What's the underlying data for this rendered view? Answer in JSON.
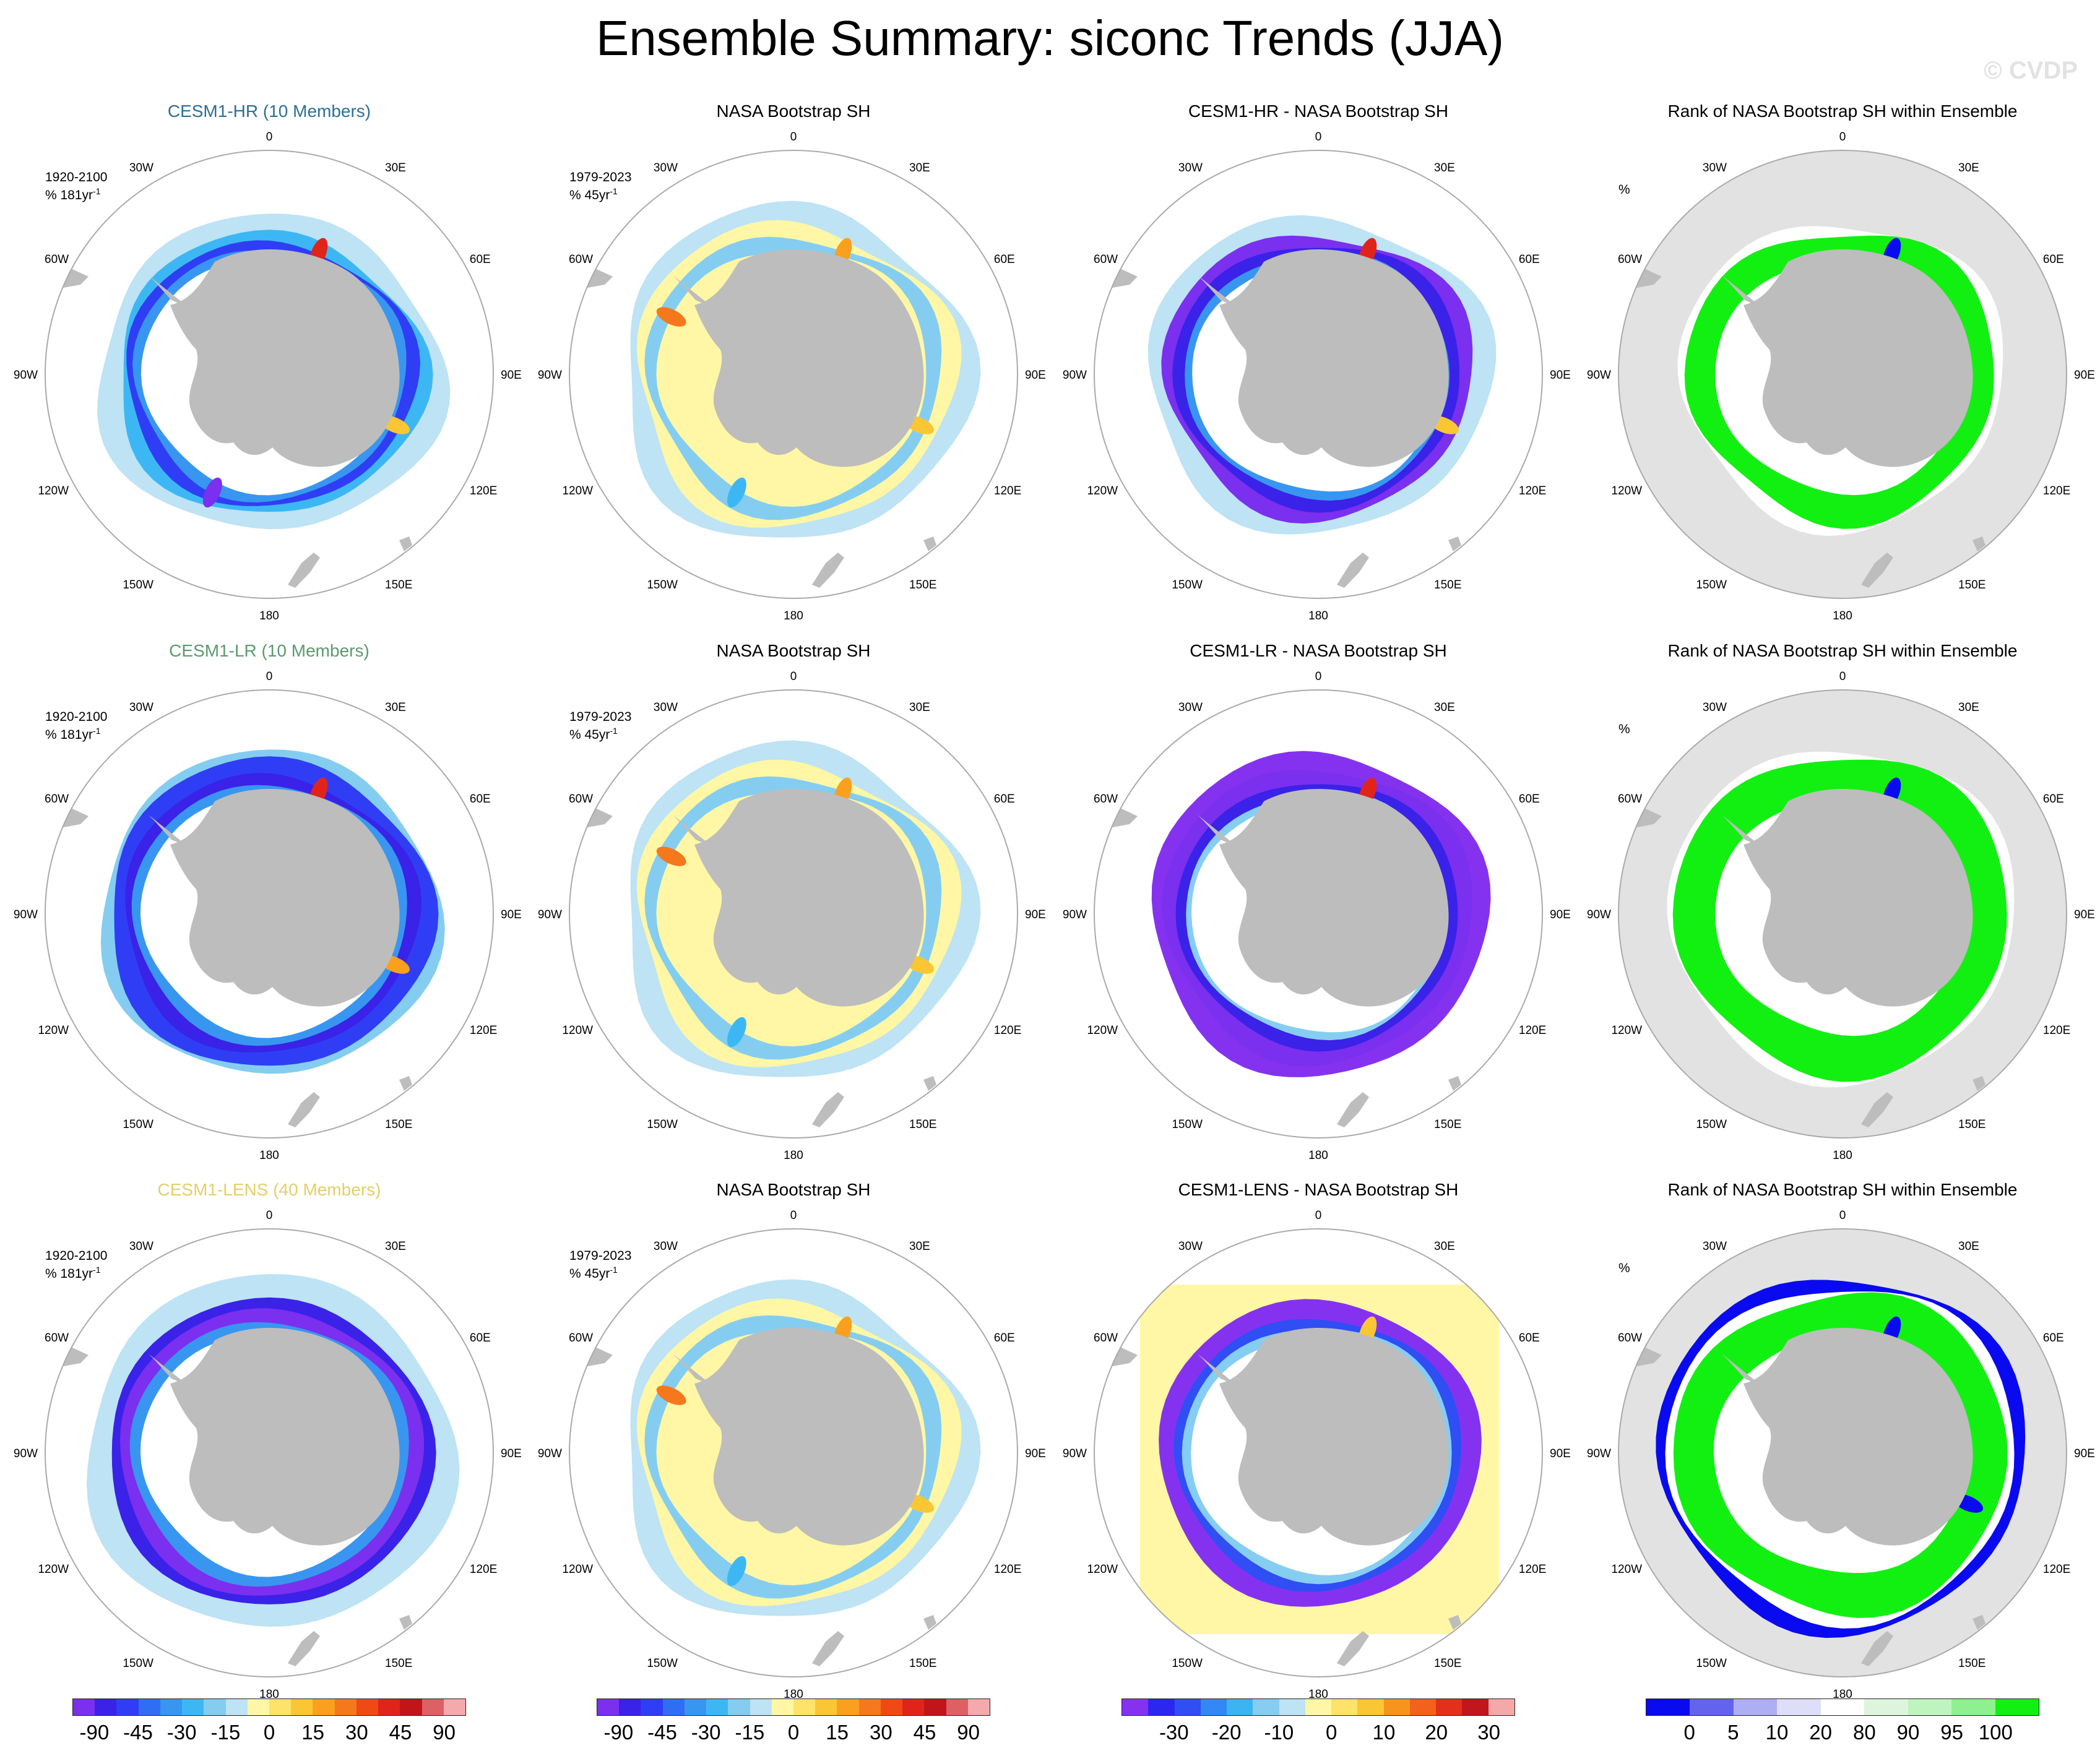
{
  "title": "Ensemble Summary: siconc Trends (JJA)",
  "watermark": "© CVDP",
  "lon_labels": [
    "0",
    "30E",
    "60E",
    "90E",
    "120E",
    "150E",
    "180",
    "150W",
    "120W",
    "90W",
    "60W",
    "30W"
  ],
  "colors": {
    "land": "#bdbdbd",
    "ocean_rank": "#e2e2e2",
    "trend": [
      "#7b2fef",
      "#3a22e8",
      "#2f3ef4",
      "#2f6ef4",
      "#3896f1",
      "#3db7f4",
      "#84cdf0",
      "#bde3f4",
      "#fff7a6",
      "#fde36a",
      "#fbc634",
      "#f9a01e",
      "#f6781c",
      "#ef4a16",
      "#e0241a",
      "#c2151a",
      "#dd6064",
      "#f6a9ac"
    ],
    "diff": [
      "#8532f0",
      "#2a27f0",
      "#2f4ef4",
      "#3388f4",
      "#3cb4f2",
      "#86cdf2",
      "#bde3f4",
      "#fff7a6",
      "#fde36a",
      "#fbc634",
      "#f7941c",
      "#f3621a",
      "#e3301a",
      "#c0161c",
      "#f4a8aa"
    ],
    "rank": [
      "#0a0af0",
      "#6363f0",
      "#aeaef5",
      "#dedef8",
      "#ffffff",
      "#ddf5dd",
      "#bff4bf",
      "#8ef08e",
      "#12f012"
    ]
  },
  "rows": [
    {
      "model_title": "CESM1-HR (10 Members)",
      "model_color": "#2c6f95",
      "period_model": "1920-2100",
      "units_model": "% 181yr",
      "obs_title": "NASA Bootstrap SH",
      "period_obs": "1979-2023",
      "units_obs": "% 45yr",
      "diff_title": "CESM1-HR - NASA Bootstrap SH",
      "rank_title": "Rank of NASA Bootstrap SH within Ensemble",
      "rank_units": "%"
    },
    {
      "model_title": "CESM1-LR (10 Members)",
      "model_color": "#5b9a6e",
      "period_model": "1920-2100",
      "units_model": "% 181yr",
      "obs_title": "NASA Bootstrap SH",
      "period_obs": "1979-2023",
      "units_obs": "% 45yr",
      "diff_title": "CESM1-LR - NASA Bootstrap SH",
      "rank_title": "Rank of NASA Bootstrap SH within Ensemble",
      "rank_units": "%"
    },
    {
      "model_title": "CESM1-LENS (40 Members)",
      "model_color": "#e3cf6a",
      "period_model": "1920-2100",
      "units_model": "% 181yr",
      "obs_title": "NASA Bootstrap SH",
      "period_obs": "1979-2023",
      "units_obs": "% 45yr",
      "diff_title": "CESM1-LENS - NASA Bootstrap SH",
      "rank_title": "Rank of NASA Bootstrap SH within Ensemble",
      "rank_units": "%"
    }
  ],
  "colorbars": [
    {
      "palette": "trend",
      "ticks": [
        "-90",
        "-45",
        "-30",
        "-15",
        "0",
        "15",
        "30",
        "45",
        "90"
      ],
      "tick_boxes": [
        1,
        3,
        5,
        7,
        9,
        11,
        13,
        15,
        17
      ]
    },
    {
      "palette": "trend",
      "ticks": [
        "-90",
        "-45",
        "-30",
        "-15",
        "0",
        "15",
        "30",
        "45",
        "90"
      ],
      "tick_boxes": [
        1,
        3,
        5,
        7,
        9,
        11,
        13,
        15,
        17
      ]
    },
    {
      "palette": "diff",
      "ticks": [
        "-30",
        "-20",
        "-10",
        "0",
        "10",
        "20",
        "30"
      ],
      "tick_boxes": [
        2,
        4,
        6,
        8,
        10,
        12,
        14
      ]
    },
    {
      "palette": "rank",
      "ticks": [
        "0",
        "5",
        "10",
        "20",
        "80",
        "90",
        "95",
        "100"
      ],
      "tick_boxes": [
        1,
        2,
        3,
        4,
        5,
        6,
        7,
        8
      ]
    }
  ]
}
